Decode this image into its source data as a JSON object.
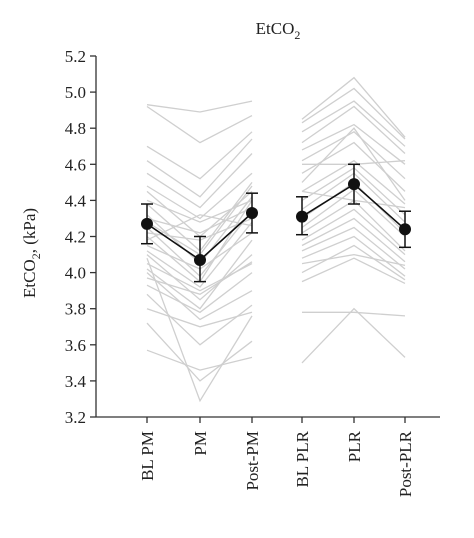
{
  "chart_data": {
    "type": "line",
    "title": "EtCO2",
    "title_main": "EtCO",
    "title_sub": "2",
    "ylabel": "EtCO2, (kPa)",
    "ylabel_main": "EtCO",
    "ylabel_sub": "2",
    "ylabel_suffix": ", (kPa)",
    "ylim": [
      3.2,
      5.2
    ],
    "yticks": [
      "3.2",
      "3.4",
      "3.6",
      "3.8",
      "4.0",
      "4.2",
      "4.4",
      "4.6",
      "4.8",
      "5.0",
      "5.2"
    ],
    "categories": [
      "BL PM",
      "PM",
      "Post-PM",
      "BL PLR",
      "PLR",
      "Post-PLR"
    ],
    "groups": [
      [
        "BL PM",
        "PM",
        "Post-PM"
      ],
      [
        "BL PLR",
        "PLR",
        "Post-PLR"
      ]
    ],
    "individual_color": "#cfcfcf",
    "mean_color": "#111111",
    "individuals_pm": [
      [
        4.93,
        4.89,
        4.95
      ],
      [
        4.92,
        4.72,
        4.87
      ],
      [
        4.7,
        4.52,
        4.78
      ],
      [
        4.62,
        4.42,
        4.74
      ],
      [
        4.55,
        4.36,
        4.66
      ],
      [
        4.48,
        4.3,
        4.55
      ],
      [
        4.45,
        4.2,
        4.45
      ],
      [
        4.4,
        4.28,
        4.4
      ],
      [
        4.38,
        4.12,
        4.5
      ],
      [
        4.32,
        4.05,
        4.42
      ],
      [
        4.3,
        4.22,
        4.36
      ],
      [
        4.28,
        4.1,
        4.48
      ],
      [
        4.25,
        3.98,
        4.34
      ],
      [
        4.22,
        4.18,
        4.3
      ],
      [
        4.2,
        3.95,
        4.4
      ],
      [
        4.18,
        4.32,
        4.26
      ],
      [
        4.15,
        4.02,
        4.22
      ],
      [
        4.12,
        3.92,
        4.28
      ],
      [
        4.1,
        3.85,
        4.1
      ],
      [
        4.05,
        3.9,
        4.05
      ],
      [
        4.02,
        3.8,
        4.18
      ],
      [
        3.97,
        3.88,
        4.06
      ],
      [
        3.93,
        3.78,
        4.0
      ],
      [
        3.88,
        3.6,
        3.82
      ],
      [
        3.8,
        3.7,
        3.78
      ],
      [
        3.72,
        3.4,
        3.62
      ],
      [
        3.57,
        3.46,
        3.53
      ],
      [
        4.08,
        3.29,
        3.76
      ],
      [
        4.0,
        3.74,
        3.9
      ]
    ],
    "individuals_plr": [
      [
        4.85,
        5.08,
        4.75
      ],
      [
        4.83,
        5.02,
        4.74
      ],
      [
        4.78,
        4.95,
        4.7
      ],
      [
        4.72,
        4.92,
        4.66
      ],
      [
        4.68,
        4.82,
        4.6
      ],
      [
        4.62,
        4.78,
        4.52
      ],
      [
        4.55,
        4.72,
        4.45
      ],
      [
        4.5,
        4.8,
        4.4
      ],
      [
        4.45,
        4.62,
        4.38
      ],
      [
        4.4,
        4.58,
        4.32
      ],
      [
        4.35,
        4.55,
        4.28
      ],
      [
        4.3,
        4.5,
        4.22
      ],
      [
        4.25,
        4.46,
        4.2
      ],
      [
        4.22,
        4.4,
        4.12
      ],
      [
        4.18,
        4.35,
        4.1
      ],
      [
        4.15,
        4.3,
        4.06
      ],
      [
        4.12,
        4.25,
        4.02
      ],
      [
        4.08,
        4.2,
        3.98
      ],
      [
        4.05,
        4.1,
        4.04
      ],
      [
        4.0,
        4.15,
        3.96
      ],
      [
        3.95,
        4.08,
        3.94
      ],
      [
        4.45,
        4.4,
        4.36
      ],
      [
        4.6,
        4.6,
        4.62
      ],
      [
        3.78,
        3.78,
        3.76
      ],
      [
        3.5,
        3.8,
        3.53
      ]
    ],
    "means": [
      4.27,
      4.07,
      4.33,
      4.31,
      4.49,
      4.24
    ],
    "error_upper": [
      4.38,
      4.2,
      4.44,
      4.42,
      4.6,
      4.34
    ],
    "error_lower": [
      4.16,
      3.95,
      4.22,
      4.21,
      4.38,
      4.14
    ]
  }
}
